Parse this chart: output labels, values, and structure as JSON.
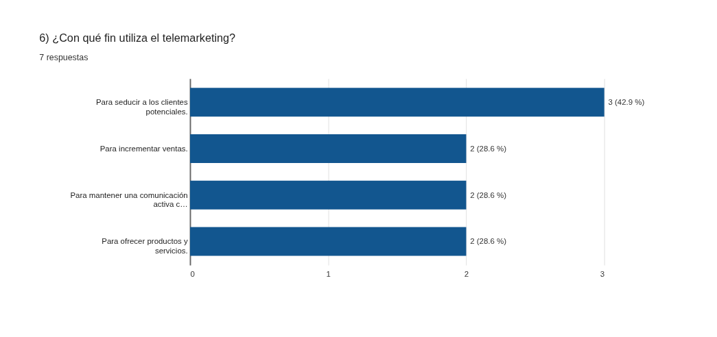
{
  "chart_data": {
    "type": "bar",
    "orientation": "horizontal",
    "title": "6) ¿Con qué fin utiliza el telemarketing?",
    "subtitle": "7 respuestas",
    "categories": [
      "Para seducir a los clientes potenciales.",
      "Para incrementar ventas.",
      "Para mantener una comunicación activa c…",
      "Para ofrecer productos y servicios."
    ],
    "values": [
      3,
      2,
      2,
      2
    ],
    "value_labels": [
      "3 (42.9 %)",
      "2 (28.6 %)",
      "2 (28.6 %)",
      "2 (28.6 %)"
    ],
    "color": "#12568f",
    "xlim": [
      0,
      3
    ],
    "xticks": [
      0,
      1,
      2,
      3
    ],
    "grid": "x"
  }
}
